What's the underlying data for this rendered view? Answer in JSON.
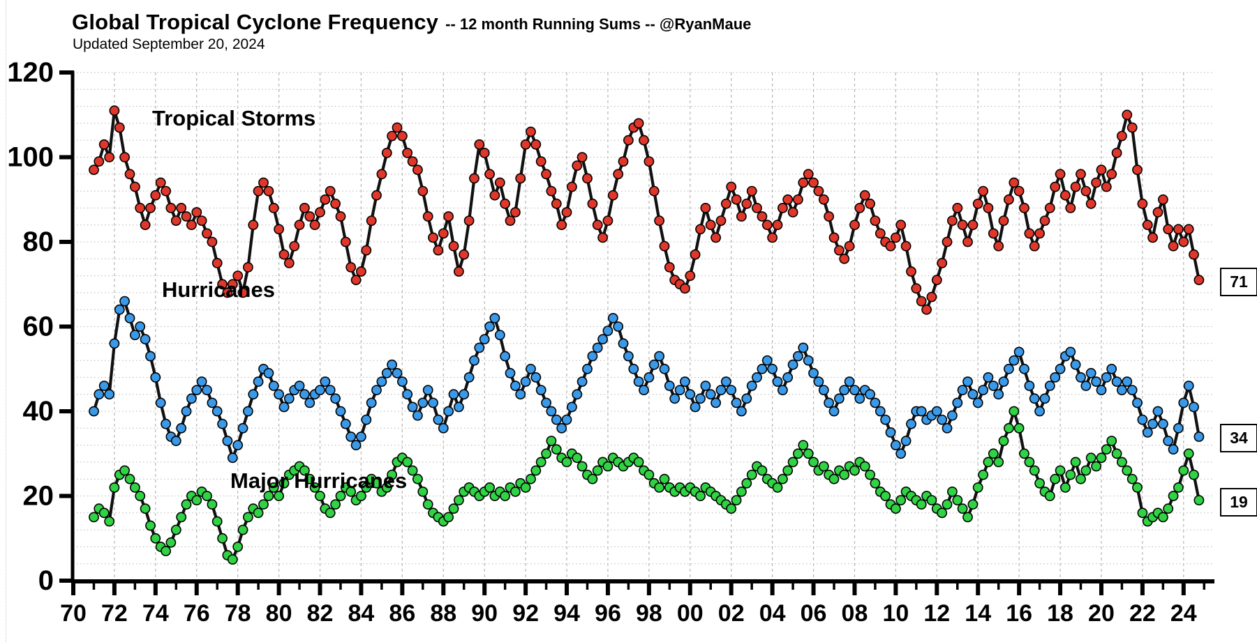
{
  "header": {
    "title": "Global Tropical Cyclone Frequency",
    "title_suffix": "-- 12 month Running Sums -- @RyanMaue",
    "subtitle": "Updated September 20, 2024"
  },
  "colors": {
    "tropical_storms": "#e0372b",
    "hurricanes": "#3a99e8",
    "major_hurricanes": "#2fd344",
    "line": "#111111",
    "grid": "#b5b5b5",
    "axis": "#000000"
  },
  "chart_data": {
    "type": "line",
    "title": "Global Tropical Cyclone Frequency -- 12 month Running Sums -- @RyanMaue",
    "subtitle": "Updated September 20, 2024",
    "xlabel": "",
    "ylabel": "",
    "x_axis": {
      "range_years": [
        1970,
        2025.5
      ],
      "minor_tick_step_years": 1,
      "label_step_years": 2,
      "tick_labels": [
        "70",
        "72",
        "74",
        "76",
        "78",
        "80",
        "82",
        "84",
        "86",
        "88",
        "90",
        "92",
        "94",
        "96",
        "98",
        "00",
        "02",
        "04",
        "06",
        "08",
        "10",
        "12",
        "14",
        "16",
        "18",
        "20",
        "22",
        "24"
      ]
    },
    "y_axis": {
      "range": [
        0,
        120
      ],
      "major_tick_step": 20,
      "minor_grid_step": 4,
      "tick_labels": [
        "0",
        "20",
        "40",
        "60",
        "80",
        "100",
        "120"
      ]
    },
    "grid": {
      "horizontal": "dotted every 4",
      "vertical": "dashed every 2 years"
    },
    "legend_position": "inline-curve-labels",
    "x_start_year": 1971.0,
    "x_step_years": 0.25,
    "series": [
      {
        "name": "Tropical Storms",
        "color": "#e0372b",
        "end_label": "71",
        "end_value": 71,
        "values": [
          97,
          99,
          103,
          100,
          111,
          107,
          100,
          96,
          93,
          88,
          84,
          88,
          91,
          94,
          92,
          88,
          85,
          88,
          86,
          84,
          87,
          85,
          82,
          80,
          75,
          70,
          68,
          70,
          72,
          68,
          74,
          84,
          92,
          94,
          92,
          88,
          83,
          77,
          75,
          79,
          84,
          88,
          86,
          84,
          87,
          90,
          92,
          89,
          86,
          80,
          74,
          71,
          73,
          78,
          85,
          91,
          96,
          101,
          105,
          107,
          105,
          101,
          99,
          97,
          92,
          86,
          81,
          78,
          82,
          86,
          79,
          73,
          77,
          85,
          95,
          103,
          101,
          96,
          91,
          94,
          89,
          85,
          87,
          95,
          103,
          106,
          103,
          99,
          96,
          92,
          89,
          84,
          87,
          93,
          98,
          100,
          95,
          89,
          84,
          81,
          85,
          91,
          96,
          99,
          104,
          107,
          108,
          104,
          99,
          92,
          85,
          79,
          74,
          71,
          70,
          69,
          72,
          77,
          83,
          88,
          84,
          81,
          85,
          89,
          93,
          90,
          86,
          89,
          92,
          88,
          86,
          84,
          81,
          84,
          88,
          90,
          87,
          90,
          94,
          96,
          94,
          92,
          90,
          86,
          81,
          78,
          76,
          79,
          84,
          88,
          91,
          89,
          85,
          82,
          80,
          79,
          81,
          84,
          79,
          73,
          69,
          66,
          64,
          67,
          71,
          75,
          80,
          85,
          88,
          84,
          80,
          84,
          89,
          92,
          88,
          82,
          79,
          85,
          90,
          94,
          92,
          88,
          82,
          79,
          82,
          85,
          88,
          93,
          96,
          91,
          88,
          93,
          96,
          92,
          89,
          94,
          97,
          93,
          96,
          101,
          105,
          110,
          107,
          97,
          89,
          84,
          81,
          87,
          90,
          83,
          79,
          83,
          80,
          83,
          77,
          71
        ]
      },
      {
        "name": "Hurricanes",
        "color": "#3a99e8",
        "end_label": "34",
        "end_value": 34,
        "values": [
          40,
          44,
          46,
          44,
          56,
          64,
          66,
          62,
          58,
          60,
          57,
          53,
          48,
          42,
          37,
          34,
          33,
          36,
          40,
          43,
          45,
          47,
          45,
          42,
          40,
          37,
          33,
          29,
          32,
          36,
          40,
          44,
          47,
          50,
          49,
          46,
          44,
          41,
          43,
          45,
          46,
          44,
          42,
          44,
          45,
          47,
          45,
          43,
          40,
          37,
          34,
          32,
          34,
          38,
          42,
          45,
          47,
          49,
          51,
          49,
          47,
          44,
          41,
          39,
          42,
          45,
          42,
          38,
          36,
          40,
          44,
          41,
          44,
          48,
          52,
          55,
          57,
          60,
          62,
          58,
          53,
          49,
          46,
          44,
          47,
          50,
          48,
          45,
          42,
          40,
          38,
          36,
          38,
          41,
          44,
          47,
          50,
          53,
          55,
          57,
          59,
          62,
          60,
          56,
          53,
          50,
          47,
          45,
          48,
          51,
          53,
          50,
          46,
          43,
          45,
          47,
          44,
          41,
          43,
          46,
          44,
          42,
          45,
          47,
          45,
          42,
          40,
          43,
          46,
          48,
          50,
          52,
          50,
          47,
          45,
          48,
          51,
          53,
          55,
          52,
          49,
          47,
          45,
          42,
          40,
          43,
          45,
          47,
          45,
          43,
          45,
          44,
          42,
          40,
          38,
          35,
          32,
          30,
          33,
          37,
          40,
          40,
          38,
          39,
          40,
          38,
          36,
          39,
          42,
          45,
          47,
          44,
          42,
          45,
          48,
          46,
          44,
          47,
          50,
          52,
          54,
          50,
          46,
          43,
          40,
          43,
          46,
          48,
          50,
          53,
          54,
          51,
          48,
          46,
          49,
          47,
          45,
          48,
          50,
          47,
          45,
          47,
          45,
          42,
          38,
          35,
          37,
          40,
          37,
          33,
          31,
          36,
          42,
          46,
          41,
          34
        ]
      },
      {
        "name": "Major Hurricanes",
        "color": "#2fd344",
        "end_label": "19",
        "end_value": 19,
        "values": [
          15,
          17,
          16,
          14,
          22,
          25,
          26,
          24,
          22,
          20,
          17,
          13,
          10,
          8,
          7,
          9,
          12,
          15,
          18,
          20,
          19,
          21,
          20,
          18,
          14,
          10,
          6,
          5,
          8,
          12,
          15,
          17,
          16,
          18,
          20,
          22,
          20,
          23,
          25,
          26,
          27,
          26,
          24,
          22,
          20,
          17,
          16,
          18,
          20,
          22,
          21,
          19,
          20,
          22,
          24,
          23,
          21,
          22,
          25,
          28,
          29,
          28,
          26,
          24,
          21,
          18,
          16,
          15,
          14,
          15,
          17,
          19,
          21,
          22,
          21,
          20,
          21,
          22,
          20,
          21,
          20,
          22,
          21,
          23,
          22,
          24,
          26,
          28,
          30,
          33,
          31,
          29,
          28,
          30,
          29,
          27,
          25,
          24,
          26,
          28,
          27,
          29,
          28,
          27,
          28,
          29,
          28,
          26,
          25,
          23,
          22,
          24,
          22,
          21,
          22,
          21,
          22,
          21,
          20,
          22,
          21,
          20,
          19,
          18,
          17,
          19,
          21,
          23,
          25,
          27,
          26,
          24,
          23,
          22,
          24,
          26,
          28,
          30,
          32,
          30,
          28,
          26,
          27,
          25,
          24,
          26,
          25,
          27,
          26,
          28,
          27,
          25,
          23,
          21,
          20,
          18,
          17,
          19,
          21,
          20,
          19,
          18,
          20,
          19,
          17,
          16,
          18,
          21,
          19,
          17,
          15,
          18,
          22,
          25,
          28,
          30,
          28,
          33,
          36,
          40,
          36,
          30,
          28,
          26,
          23,
          21,
          20,
          24,
          26,
          22,
          25,
          28,
          24,
          26,
          29,
          27,
          29,
          31,
          33,
          30,
          28,
          26,
          24,
          22,
          16,
          14,
          15,
          16,
          15,
          17,
          20,
          22,
          26,
          30,
          25,
          19
        ]
      }
    ]
  }
}
